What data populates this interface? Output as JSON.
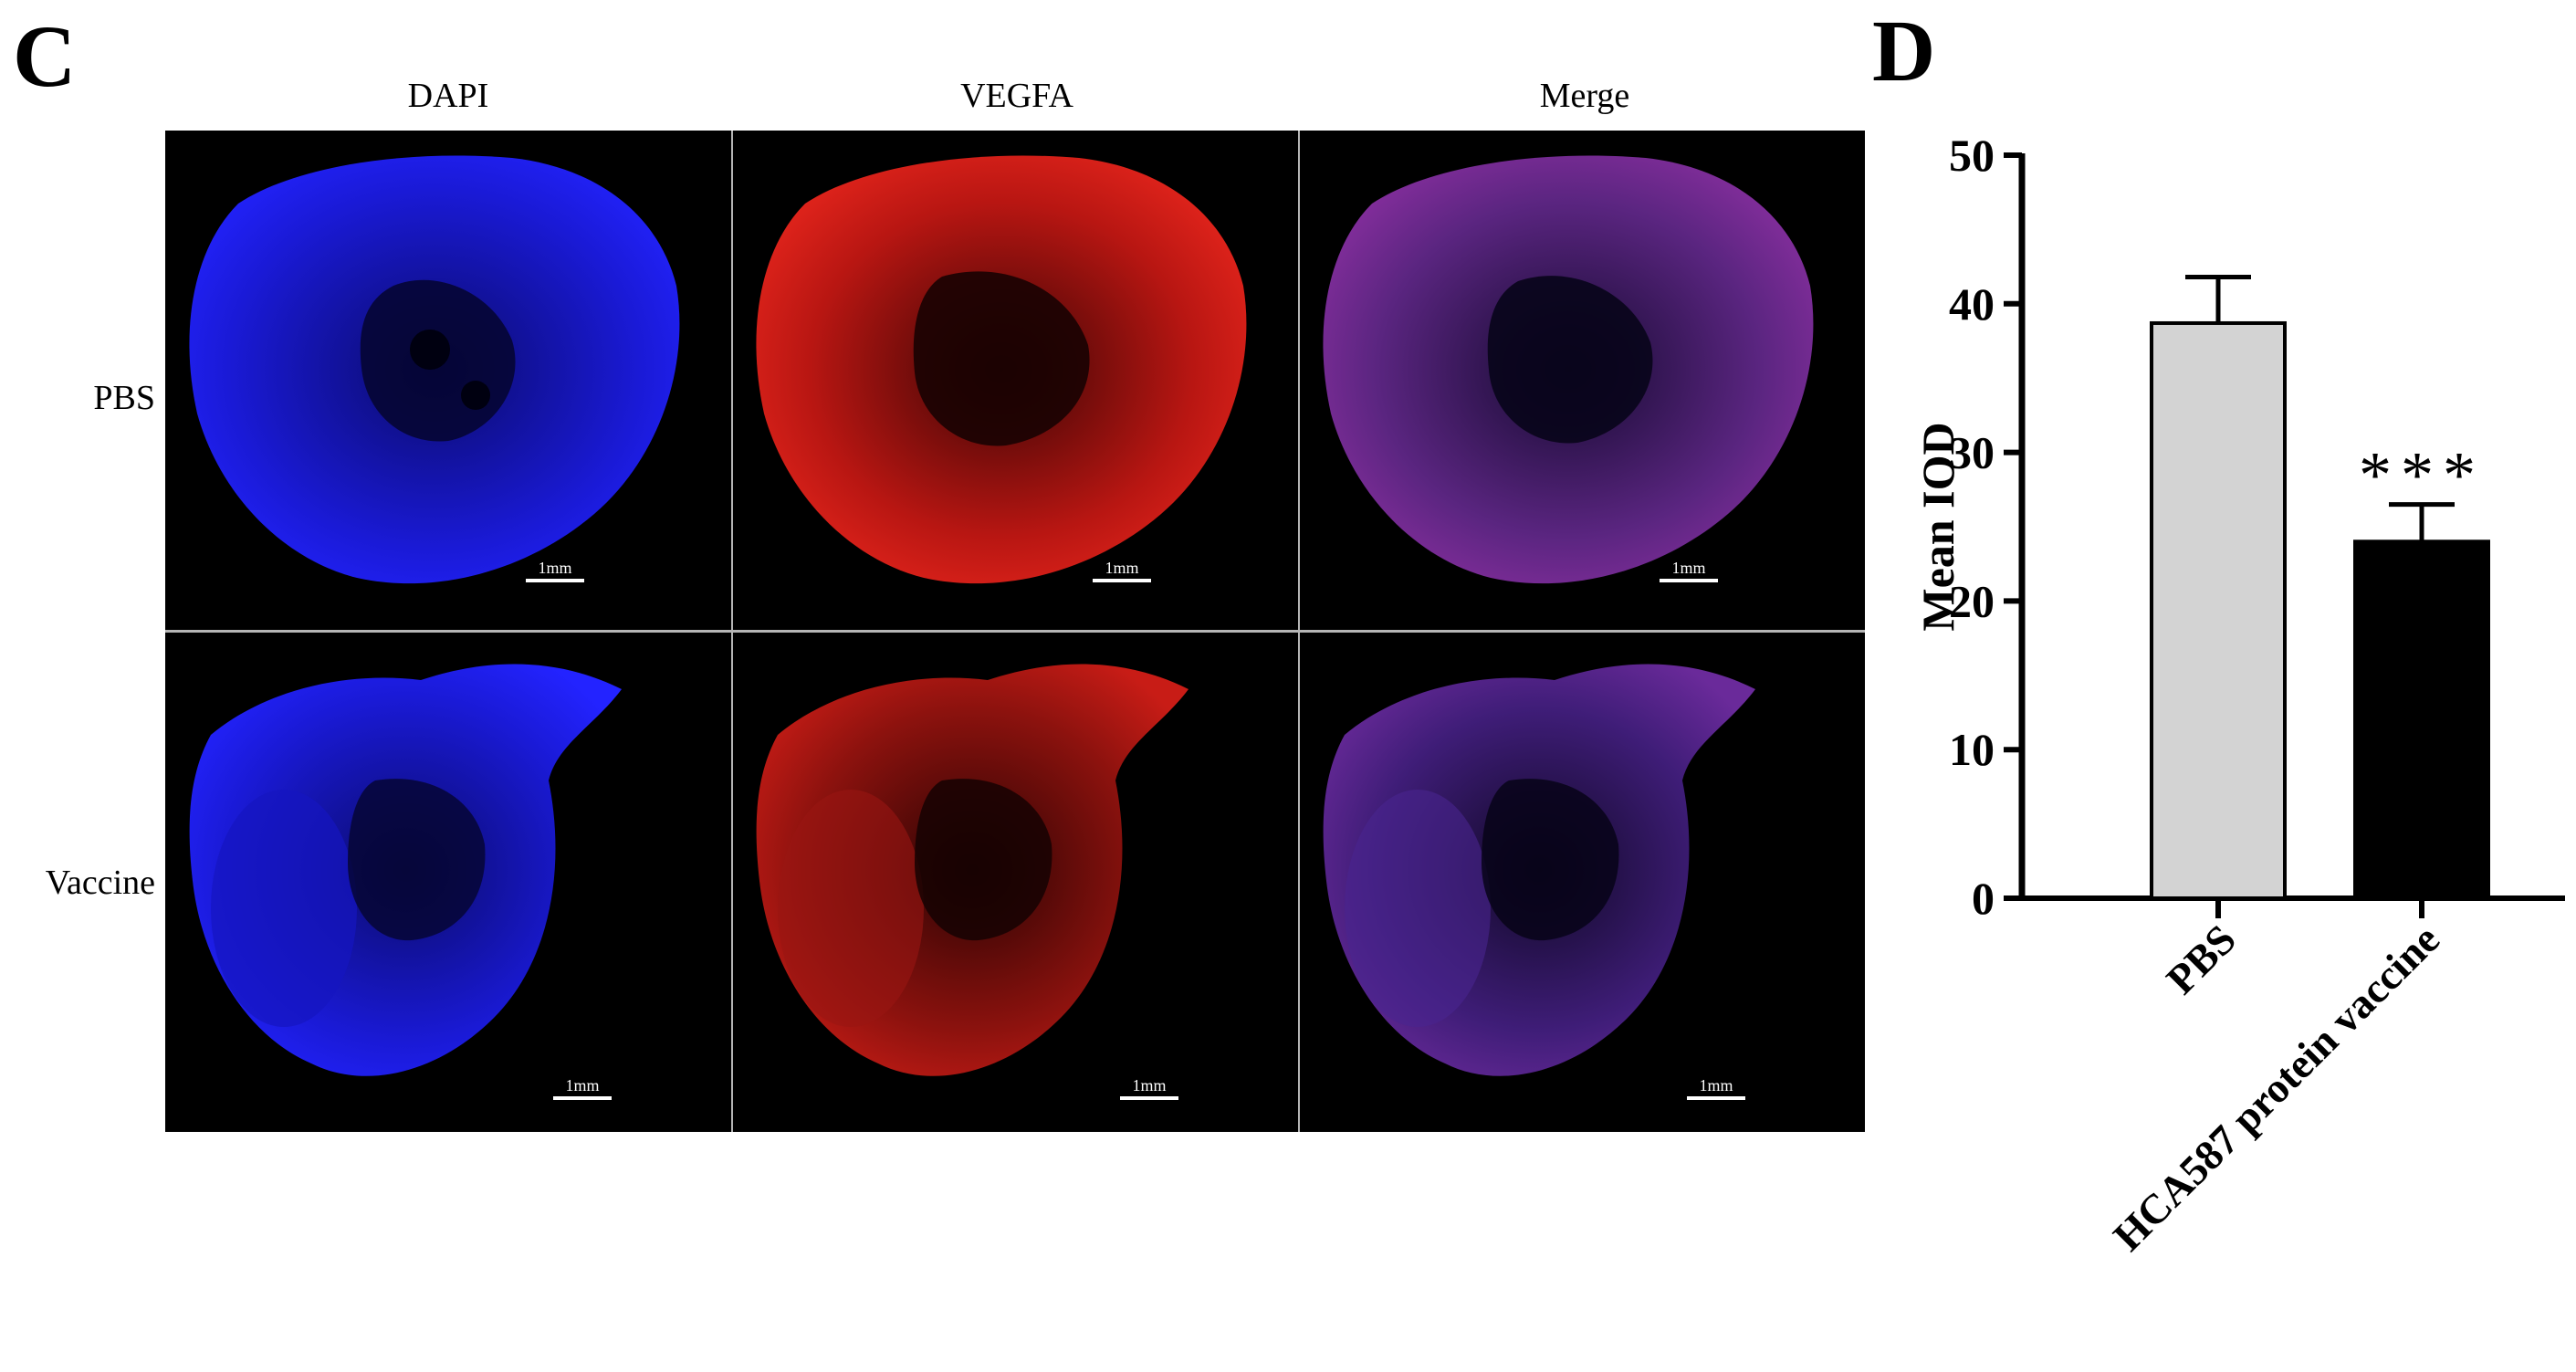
{
  "panels": {
    "left_letter": "C",
    "right_letter": "D"
  },
  "microscopy": {
    "columns": [
      "DAPI",
      "VEGFA",
      "Merge"
    ],
    "rows": [
      "PBS",
      "Vaccine"
    ],
    "scale_bar": "1mm",
    "channel_colors": {
      "DAPI": "#1a1aff",
      "VEGFA": "#e0201a",
      "Merge": "#7a2a9a"
    }
  },
  "chart_data": {
    "type": "bar",
    "categories": [
      "PBS",
      "HCA587 protein vaccine"
    ],
    "values": [
      38.7,
      24.0
    ],
    "error_bars": [
      3.1,
      2.5
    ],
    "significance": [
      "",
      "***"
    ],
    "bar_colors": [
      "#d3d3d3",
      "#000000"
    ],
    "xlabel": "",
    "ylabel": "Mean IOD",
    "ylim": [
      0,
      50
    ],
    "yticks": [
      0,
      10,
      20,
      30,
      40,
      50
    ],
    "grid": false
  }
}
